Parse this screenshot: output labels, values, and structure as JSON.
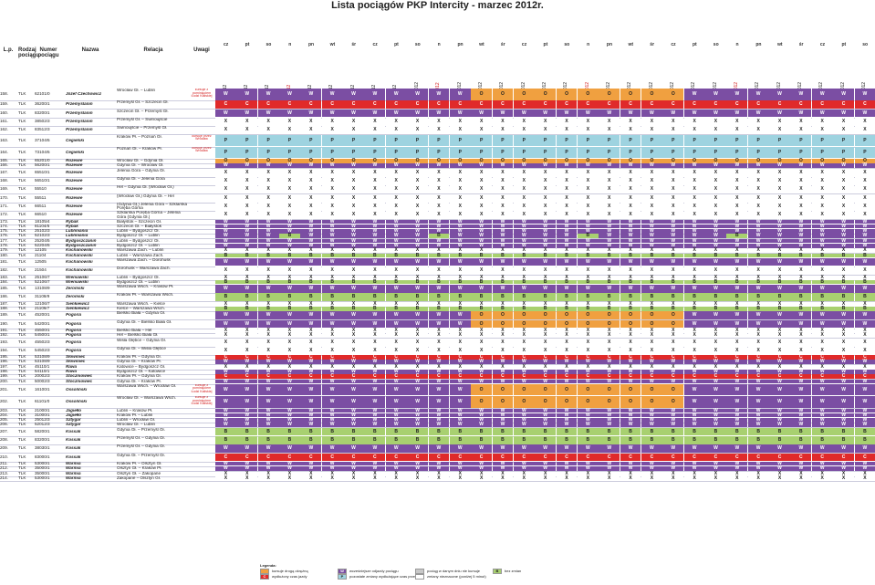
{
  "title": "Lista pociągów PKP Intercity - marzec 2012r.",
  "headers": {
    "lp": "L.p.",
    "rodzaj": "Rodzaj pociągu",
    "numer": "Numer pociągu",
    "nazwa": "Nazwa",
    "relacja": "Relacja",
    "uwagi": "Uwagi"
  },
  "days": [
    "cz",
    "pt",
    "so",
    "n",
    "pn",
    "wt",
    "śr",
    "cz",
    "pt",
    "so",
    "n",
    "pn",
    "wt",
    "śr",
    "cz",
    "pt",
    "so",
    "n",
    "pn",
    "wt",
    "śr",
    "cz",
    "pt",
    "so",
    "n",
    "pn",
    "wt",
    "śr",
    "cz",
    "pt",
    "so"
  ],
  "dates": [
    "1 mar 2012",
    "2 mar 2012",
    "3 mar 2012",
    "4 mar 2012",
    "5 mar 2012",
    "6 mar 2012",
    "7 mar 2012",
    "8 mar 2012",
    "9 mar 2012",
    "10 mar 2012",
    "11 mar 2012",
    "12 mar 2012",
    "13 mar 2012",
    "14 mar 2012",
    "15 mar 2012",
    "16 mar 2012",
    "17 mar 2012",
    "18 mar 2012",
    "19 mar 2012",
    "20 mar 2012",
    "21 mar 2012",
    "22 mar 2012",
    "23 mar 2012",
    "24 mar 2012",
    "25 mar 2012",
    "26 mar 2012",
    "27 mar 2012",
    "28 mar 2012",
    "29 mar 2012",
    "30 mar 2012",
    "31 mar 2012"
  ],
  "holiday_dates": [
    4,
    11,
    18,
    25
  ],
  "colors": {
    "W": "#7b4ea3",
    "C": "#e02a2a",
    "X": "#ffffff",
    "P": "#9ed3e0",
    "O": "#f0a040",
    "B": "#a8d070",
    "K": "#6a8fc0",
    "N": "#444444",
    "note": "#d42020"
  },
  "rows": [
    {
      "lp": "158.",
      "typ": "TLK",
      "nr": "62101/0",
      "nazwa": "Józef Czechowicz",
      "rel": "Wrocław Gł. – Lublin",
      "uwagi": "kursuje z pominięciem Łodzi Kaliskiej",
      "code": "WWWWWWWWWWWWOOOOOOOOOOWWWWWWWWW"
    },
    {
      "lp": "159.",
      "typ": "TLK",
      "nr": "36200/1",
      "nazwa": "Przemyślanin",
      "rel": "Przemyśl Gł. – Szczecin Gł.",
      "uwagi": "",
      "code": "CCCCCCCCCCCCCCCCCCCCCCCCCCCCCCC"
    },
    {
      "lp": "160.",
      "typ": "TLK",
      "nr": "83200/1",
      "nazwa": "Przemyślanin",
      "rel": "Szczecin Gł. – Przemyśl Gł.",
      "uwagi": "",
      "code": "WWWWWWWWWWWWWWWWWWWWWWWWWWWWWWW"
    },
    {
      "lp": "161.",
      "typ": "TLK",
      "nr": "38502/3",
      "nazwa": "Przemyślanin",
      "rel": "Przemyśl Gł. – Świnoujście",
      "uwagi": "",
      "code": "XXXXXXXXXXXXXXXXXXXXXXXXXXXXXXX"
    },
    {
      "lp": "162.",
      "typ": "TLK",
      "nr": "83512/3",
      "nazwa": "Przemyślanin",
      "rel": "Świnoujście – Przemyśl Gł.",
      "uwagi": "",
      "code": "XXXXXXXXXXXXXXXXXXXXXXXXXXXXXXX"
    },
    {
      "lp": "163.",
      "typ": "TLK",
      "nr": "37104/5",
      "nazwa": "Cegielski",
      "rel": "Kraków Pł. – Poznań Gł.",
      "uwagi": "kursuje przez Wrocław",
      "code": "PPPPPPPPPPPPPPPPPPPPPPPPPPPPPPP"
    },
    {
      "lp": "164.",
      "typ": "TLK",
      "nr": "73104/5",
      "nazwa": "Cegielski",
      "rel": "Poznań Gł. – Kraków Pł.",
      "uwagi": "kursuje przez Wrocław",
      "code": "PPPPPPPPPPPPPPPPPPPPPPPPPPPPPPP"
    },
    {
      "lp": "165.",
      "typ": "TLK",
      "nr": "65201/0",
      "nazwa": "Rozewie",
      "rel": "Wrocław Gł. – Gdynia Gł.",
      "uwagi": "",
      "code": "OOOOOOOOOOOOOOOOOOOOOOOOOOOOOOO"
    },
    {
      "lp": "166.",
      "typ": "TLK",
      "nr": "56200/1",
      "nazwa": "Rozewie",
      "rel": "Gdynia Gł. – Wrocław Gł.",
      "uwagi": "",
      "code": "WWWWWWWWWWWWWWWWWWWWWWWWWWWWWWW"
    },
    {
      "lp": "167.",
      "typ": "TLK",
      "nr": "65510/1",
      "nazwa": "Rozewie",
      "rel": "Jelenia Góra – Gdynia Gł.",
      "uwagi": "",
      "code": "XXXXXXXXXXXXXXXXXXXXXXXXXXXXXXX"
    },
    {
      "lp": "168.",
      "typ": "TLK",
      "nr": "56510/1",
      "nazwa": "Rozewie",
      "rel": "Gdynia Gł. – Jelenia Góra",
      "uwagi": "",
      "code": "XXXXXXXXXXXXXXXXXXXXXXXXXXXXXXX"
    },
    {
      "lp": "169.",
      "typ": "TLK",
      "nr": "55510",
      "nazwa": "Rozewie",
      "rel": "Hel – Gdynia Gł. (Wrocław Gł.)",
      "uwagi": "",
      "code": "XXXXXXXXXXXXXXXXXXXXXXXXXXXXXXX"
    },
    {
      "lp": "170.",
      "typ": "TLK",
      "nr": "55511",
      "nazwa": "Rozewie",
      "rel": "(Wrocław Gł.) Gdynia Gł. – Hel",
      "uwagi": "",
      "code": "XXXXXXXXXXXXXXXXXXXXXXXXXXXXXXX"
    },
    {
      "lp": "171.",
      "typ": "TLK",
      "nr": "66511",
      "nazwa": "Rozewie",
      "rel": "(Gdynia Gł.) Jelenia Góra – Szklarska Poręba Górna",
      "uwagi": "",
      "code": "XXXXXXXXXXXXXXXXXXXXXXXXXXXXXXX"
    },
    {
      "lp": "172.",
      "typ": "TLK",
      "nr": "66510",
      "nazwa": "Rozewie",
      "rel": "Szklarska Poręba Górna – Jelenia Góra (Gdynia Gł.)",
      "uwagi": "",
      "code": "XXXXXXXXXXXXXXXXXXXXXXXXXXXXXXX"
    },
    {
      "lp": "173.",
      "typ": "TLK",
      "nr": "18105/4",
      "nazwa": "Rybak",
      "rel": "Białystok – Szczecin Gł.",
      "uwagi": "",
      "code": "WWWWWWWWWWWWWWWWWWWWWWWWWWWWWWW"
    },
    {
      "lp": "174.",
      "typ": "TLK",
      "nr": "81104/5",
      "nazwa": "Rybak",
      "rel": "Szczecin Gł. – Białystok",
      "uwagi": "",
      "code": "WWWWWWWWWWWWWWWWWWWWWWWWWWWWWWW"
    },
    {
      "lp": "175.",
      "typ": "TLK",
      "nr": "25102/3",
      "nazwa": "Lubliniania",
      "rel": "Lublin – Bydgoszcz Gł.",
      "uwagi": "",
      "code": "WWWWWWWWWWWWWWWWWWWWWWWWWWWWWWW"
    },
    {
      "lp": "176.",
      "typ": "TLK",
      "nr": "52102/3",
      "nazwa": "Lubliniania",
      "rel": "Bydgoszcz Gł. – Lublin",
      "uwagi": "",
      "code": "WWWBWWWWWWBWWWWWWBWWWWWWBWWWWWW"
    },
    {
      "lp": "177.",
      "typ": "TLK",
      "nr": "25204/5",
      "nazwa": "Bydgoszczanin",
      "rel": "Lublin – Bydgoszcz Gł.",
      "uwagi": "",
      "code": "WWWWWWWWWWWWWWWWWWWWWWWWWWWWWWW"
    },
    {
      "lp": "178.",
      "typ": "TLK",
      "nr": "52204/5",
      "nazwa": "Bydgoszczanin",
      "rel": "Bydgoszcz Gł. – Lublin",
      "uwagi": "",
      "code": "WWWWWWWWWWWWWWWWWWWWWWWWWWWWWWW"
    },
    {
      "lp": "179.",
      "typ": "TLK",
      "nr": "12105",
      "nazwa": "Kochanowski",
      "rel": "Warszawa Zach. – Lublin",
      "uwagi": "",
      "code": "XXXXXXXXXXXXXXXXXXXXXXXXXXXXXXX"
    },
    {
      "lp": "180.",
      "typ": "TLK",
      "nr": "21104",
      "nazwa": "Kochanowski",
      "rel": "Lublin – Warszawa Zach.",
      "uwagi": "",
      "code": "BBBBBBBBBBBBBBBBBBBBBBBBBBBBBBB"
    },
    {
      "lp": "181.",
      "typ": "TLK",
      "nr": "12505",
      "nazwa": "Kochanowski",
      "rel": "Warszawa Zach. – Dorohusk",
      "uwagi": "",
      "code": "WWWWWWWWWWWWWWWWWWWWWWWWWWWWWWW"
    },
    {
      "lp": "182.",
      "typ": "TLK",
      "nr": "21504",
      "nazwa": "Kochanowski",
      "rel": "Dorohusk – Warszawa Zach.",
      "uwagi": "",
      "code": "XXXXXXXXXXXXXXXXXXXXXXXXXXXXXXX"
    },
    {
      "lp": "183.",
      "typ": "TLK",
      "nr": "25106/7",
      "nazwa": "Wieniawski",
      "rel": "Lublin – Bydgoszcz Gł.",
      "uwagi": "",
      "code": "XXXXXXXXXXXXXXXXXXXXXXXXXXXXXXX"
    },
    {
      "lp": "184.",
      "typ": "TLK",
      "nr": "52106/7",
      "nazwa": "Wieniawski",
      "rel": "Bydgoszcz Gł. – Lublin",
      "uwagi": "",
      "code": "BBBBBBBBBBBBBBBBBBBBBBBBBBBBBBB"
    },
    {
      "lp": "185.",
      "typ": "TLK",
      "nr": "13108/9",
      "nazwa": "Żeromski",
      "rel": "Warszawa Wsch. – Kraków Pł.",
      "uwagi": "",
      "code": "WWWWWWWWWWWWWWWWWWWWWWWWWWWWWWW"
    },
    {
      "lp": "186.",
      "typ": "TLK",
      "nr": "31108/9",
      "nazwa": "Żeromski",
      "rel": "Kraków Pł. – Warszawa Wsch.",
      "uwagi": "",
      "code": "BBBBBBBBBBBBBBBBBBBBBBBBBBBBBBB"
    },
    {
      "lp": "187.",
      "typ": "TLK",
      "nr": "12106/7",
      "nazwa": "Sienkiewicz",
      "rel": "Warszawa Wsch. – Kielce",
      "uwagi": "",
      "code": "XXXXXXXXXXXXXXXXXXXXXXXXXXXXXXX"
    },
    {
      "lp": "188.",
      "typ": "TLK",
      "nr": "21106/7",
      "nazwa": "Sienkiewicz",
      "rel": "Kielce – Warszawa Wsch.",
      "uwagi": "",
      "code": "BBBBBBBBBBBBBBBBBBBBBBBBBBBBBBB"
    },
    {
      "lp": "189.",
      "typ": "TLK",
      "nr": "45200/1",
      "nazwa": "Pogoria",
      "rel": "Bielsko Biała – Gdynia Gł.",
      "uwagi": "",
      "code": "WWWWWWWWWWWWOOOOOOOOOOWWWWWWWWW"
    },
    {
      "lp": "190.",
      "typ": "TLK",
      "nr": "54200/1",
      "nazwa": "Pogoria",
      "rel": "Gdynia Gł. – Bielsko Biała Gł.",
      "uwagi": "",
      "code": "WWWWWWWWWWWWOOOOOOOOOOWWWWWWWWW"
    },
    {
      "lp": "191.",
      "typ": "TLK",
      "nr": "45500/1",
      "nazwa": "Pogoria",
      "rel": "Bielsko Biała – Hel",
      "uwagi": "",
      "code": "XXXXXXXXXXXXXXXXXXXXXXXXXXXXXXX"
    },
    {
      "lp": "192.",
      "typ": "TLK",
      "nr": "54500/1",
      "nazwa": "Pogoria",
      "rel": "Hel – Bielsko Biała Gł.",
      "uwagi": "",
      "code": "XXXXXXXXXXXXXXXXXXXXXXXXXXXXXXX"
    },
    {
      "lp": "193.",
      "typ": "TLK",
      "nr": "45502/3",
      "nazwa": "Pogoria",
      "rel": "Wisła Głębce – Gdynia Gł.",
      "uwagi": "",
      "code": "XXXXXXXXXXXXXXXXXXXXXXXXXXXXXXX"
    },
    {
      "lp": "194.",
      "typ": "TLK",
      "nr": "54502/3",
      "nazwa": "Pogoria",
      "rel": "Gdynia Gł. – Wisła Głębce",
      "uwagi": "",
      "code": "XXXXXXXXXXXXXXXXXXXXXXXXXXXXXXX"
    },
    {
      "lp": "195.",
      "typ": "TLK",
      "nr": "53108/9",
      "nazwa": "Słowiniec",
      "rel": "Kraków Pł. – Gdynia Gł.",
      "uwagi": "",
      "code": "CCCCCCCCCCCCCCCCCCCCCCCCCCCCCCC"
    },
    {
      "lp": "196.",
      "typ": "TLK",
      "nr": "53108/9",
      "nazwa": "Słowiniec",
      "rel": "Gdynia Gł. – Kraków Pł.",
      "uwagi": "",
      "code": "WWWWWWWWWWWWWWWWWWWWWWWWWWWWWWW"
    },
    {
      "lp": "197.",
      "typ": "TLK",
      "nr": "45110/1",
      "nazwa": "Rawa",
      "rel": "Katowice – Bydgoszcz Gł.",
      "uwagi": "",
      "code": "XXXXXXXXXXXXXXXXXXXXXXXXXXXXXXX"
    },
    {
      "lp": "198.",
      "typ": "TLK",
      "nr": "54110/1",
      "nazwa": "Rawa",
      "rel": "Bydgoszcz Gł. – Katowice",
      "uwagi": "",
      "code": "WWWWWWWWWWWWWWWWWWWWWWWWWWWWWWW"
    },
    {
      "lp": "199.",
      "typ": "TLK",
      "nr": "20002/3",
      "nazwa": "Stoczniowiec",
      "rel": "Kraków Pł. – Gdynia Gł.",
      "uwagi": "",
      "code": "CCCCCCCCCCCCCCCCCCCCCCCCCCCCCCC"
    },
    {
      "lp": "200.",
      "typ": "TLK",
      "nr": "50002/3",
      "nazwa": "Stoczniowiec",
      "rel": "Gdynia Gł. – Kraków Pł.",
      "uwagi": "",
      "code": "WWWWWWWWWWWWWWWWWWWWWWWWWWWWWWW"
    },
    {
      "lp": "201.",
      "typ": "TLK",
      "nr": "16100/1",
      "nazwa": "Ossoliński",
      "rel": "Warszawa Wsch. – Wrocław Gł.",
      "uwagi": "kursuje z pominięciem Łodzi Kaliskiej",
      "code": "WWWWWWWWWWWWOOOOOOOOOOWWWWWWWWW"
    },
    {
      "lp": "202.",
      "typ": "TLK",
      "nr": "61101/0",
      "nazwa": "Ossoliński",
      "rel": "Wrocław Gł. – Warszawa Wsch.",
      "uwagi": "kursuje z pominięciem Łodzi Kaliskiej",
      "code": "WWWWWWWWWWWWOOOOOOOOOOWWWWWWWWW"
    },
    {
      "lp": "203.",
      "typ": "TLK",
      "nr": "21000/1",
      "nazwa": "Jagiełło",
      "rel": "Lublin – Kraków Pł.",
      "uwagi": "",
      "code": "WWWWWWWWWWWWWWWWWWWWWWWWWWWWWWW"
    },
    {
      "lp": "204.",
      "typ": "TLK",
      "nr": "31000/1",
      "nazwa": "Jagiełło",
      "rel": "Kraków Pł. – Lublin",
      "uwagi": "",
      "code": "WWWWWWWWWWWWWWWWWWWWWWWWWWWWWWW"
    },
    {
      "lp": "205.",
      "typ": "TLK",
      "nr": "25012/3",
      "nazwa": "Sztygar",
      "rel": "Lublin – Wrocław Gł.",
      "uwagi": "",
      "code": "WWWWWWWWWWWWWWWWWWWWWWWWWWWWWWW"
    },
    {
      "lp": "206.",
      "typ": "TLK",
      "nr": "52012/3",
      "nazwa": "Sztygar",
      "rel": "Wrocław Gł. – Lublin",
      "uwagi": "",
      "code": "WWWWWWWWWWWWWWWWWWWWWWWWWWWWWWW"
    },
    {
      "lp": "207.",
      "typ": "TLK",
      "nr": "58200/1",
      "nazwa": "Kossak",
      "rel": "Gdynia Gł. – Przemyśl Gł.",
      "uwagi": "",
      "code": "BBBBBBBBBBBBBBBBBBBBBBBBBBBBBBB"
    },
    {
      "lp": "208.",
      "typ": "TLK",
      "nr": "83200/1",
      "nazwa": "Kossak",
      "rel": "Przemyśl Gł. – Gdynia Gł.",
      "uwagi": "",
      "code": "BBBBBBBBBBBBBBBBBBBBBBBBBBBBBBB"
    },
    {
      "lp": "209.",
      "typ": "TLK",
      "nr": "38030/1",
      "nazwa": "Kossak",
      "rel": "Przemyśl Gł. – Gdynia Gł.",
      "uwagi": "",
      "code": "WWWWWWWWWWWWWWWWWWWWWWWWWWWWWWW"
    },
    {
      "lp": "210.",
      "typ": "TLK",
      "nr": "83000/1",
      "nazwa": "Kossak",
      "rel": "Gdynia Gł. – Przemyśl Gł.",
      "uwagi": "",
      "code": "CCCCCCCCCCCCCCCCCCCCCCCCCCCCCCC"
    },
    {
      "lp": "211.",
      "typ": "TLK",
      "nr": "53000/1",
      "nazwa": "Warmia",
      "rel": "Kraków Pł. – Olsztyn Gł.",
      "uwagi": "",
      "code": "WWWWWWWWWWWWWWWWWWWWWWWWWWWWWWW"
    },
    {
      "lp": "212.",
      "typ": "TLK",
      "nr": "35000/1",
      "nazwa": "Warmia",
      "rel": "Olsztyn Gł. – Kraków Pł.",
      "uwagi": "",
      "code": "WWWWWWWWWWWWWWWWWWWWWWWWWWWWWWW"
    },
    {
      "lp": "213.",
      "typ": "TLK",
      "nr": "35000/1",
      "nazwa": "Warmia",
      "rel": "Olsztyn Gł. – Zakopane",
      "uwagi": "",
      "code": "XXXXXXXXXXXXXXXXXXXXXXXXXXXXXXX"
    },
    {
      "lp": "214.",
      "typ": "TLK",
      "nr": "53000/1",
      "nazwa": "Warmia",
      "rel": "Zakopane – Olsztyn Gł.",
      "uwagi": "",
      "code": "XXXXXXXXXXXXXXXXXXXXXXXXXXXXXXX"
    }
  ],
  "legend": {
    "title": "Legenda:",
    "items": [
      {
        "code": "",
        "color": "#f0a040",
        "text": "kursuje drogą okrężną"
      },
      {
        "code": "C",
        "color": "#e02a2a",
        "text": "wydłużony czas jazdy"
      },
      {
        "code": "W",
        "color": "#7b4ea3",
        "text": "wcześniejsze odjazdy pociągu"
      },
      {
        "code": "P",
        "color": "#9ed3e0",
        "text": "pozostałe zmiany wydłużające czas przejazdu"
      },
      {
        "code": "",
        "color": "#c8c8c8",
        "text": "pociąg w danym dniu nie kursuje"
      },
      {
        "code": "",
        "color": "#ffffff",
        "text": "zmiany nieznaczne (poniżej 5 minut)"
      },
      {
        "code": "B",
        "color": "#a8d070",
        "text": "bez zmian"
      }
    ]
  }
}
